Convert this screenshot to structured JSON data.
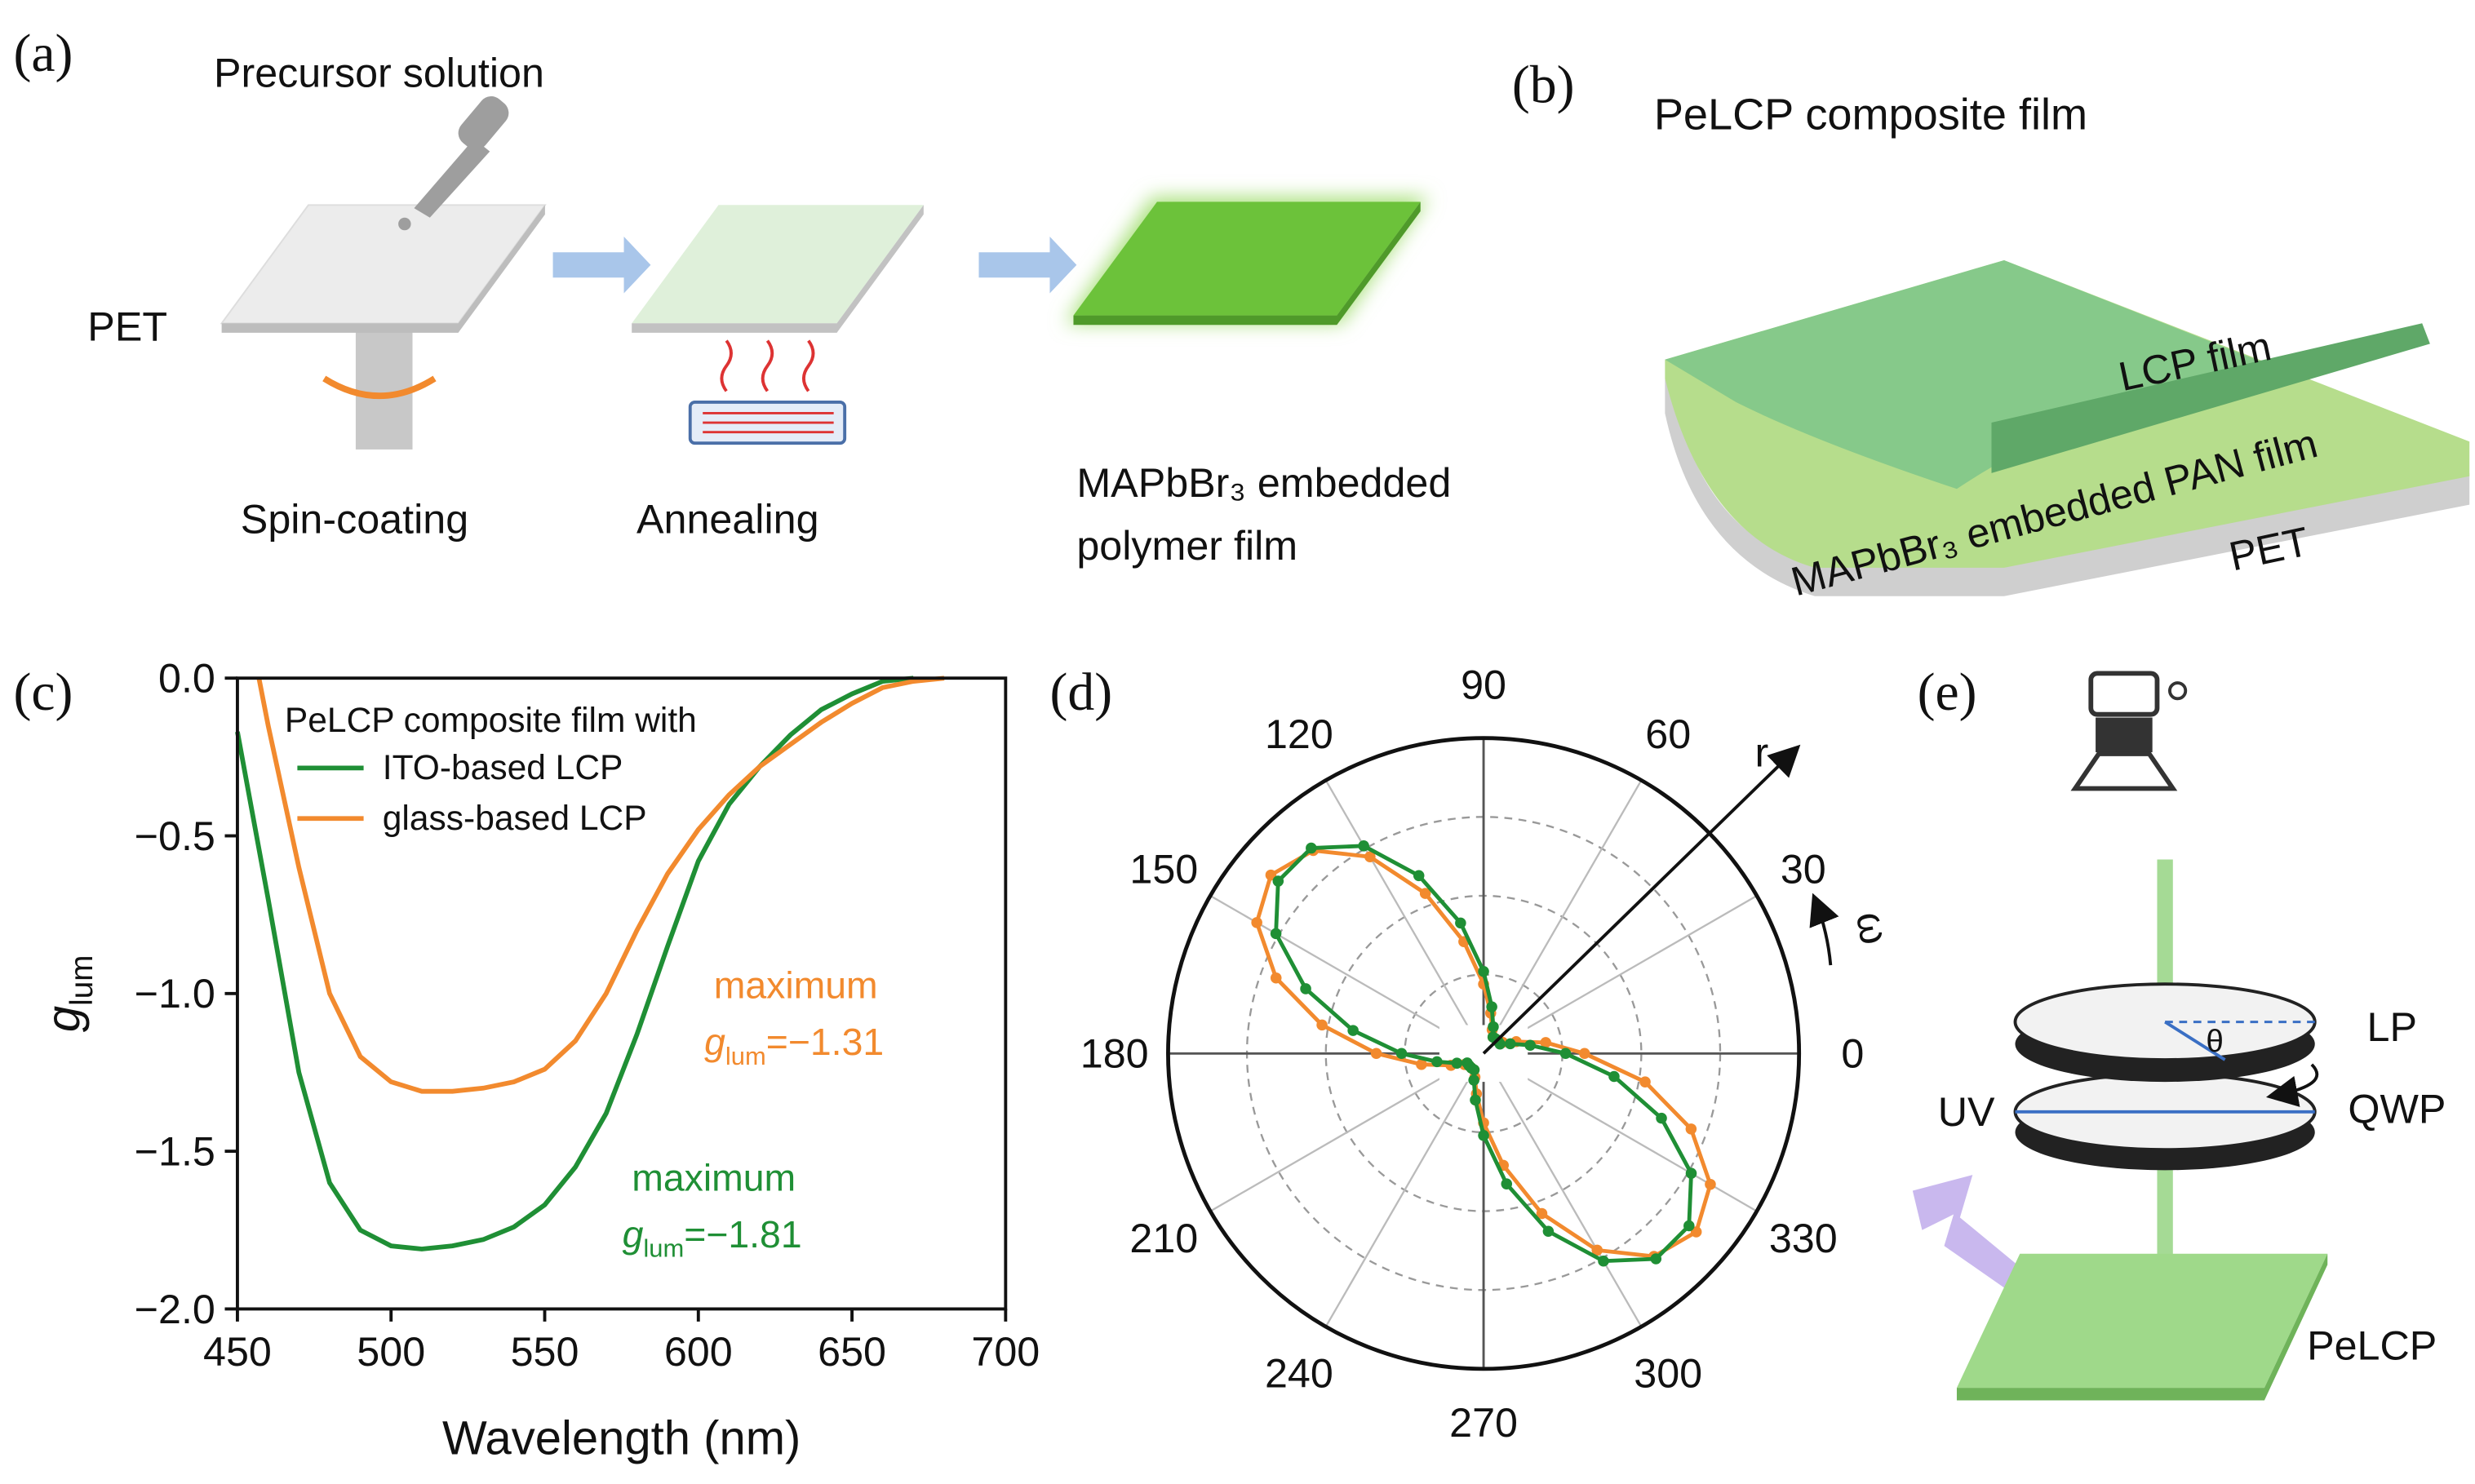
{
  "panel_a": {
    "label": "(a)",
    "precursor": "Precursor solution",
    "substrate": "PET",
    "steps": [
      "Spin-coating",
      "Annealing"
    ],
    "product": [
      "MAPbBr₃ embedded",
      "polymer film"
    ]
  },
  "panel_b": {
    "label": "(b)",
    "title": "PeLCP composite film",
    "layers": [
      "LCP film",
      "MAPbBr₃ embedded PAN film",
      "PET"
    ]
  },
  "panel_e": {
    "label": "(e)",
    "angle": "θ",
    "polarizer": "LP",
    "waveplate": "QWP",
    "source": "UV",
    "sample": "PeLCP"
  },
  "chart_data": [
    {
      "type": "line",
      "panel": "(c)",
      "x_label": "Wavelength (nm)",
      "y_label": {
        "symbol": "g",
        "subscript": "lum"
      },
      "xlim": [
        450,
        700
      ],
      "xticks": [
        450,
        500,
        550,
        600,
        650,
        700
      ],
      "ylim": [
        -2,
        0
      ],
      "yticks": [
        {
          "value": 0,
          "label": "0.0"
        },
        {
          "value": -0.5,
          "label": "−0.5"
        },
        {
          "value": -1,
          "label": "−1.0"
        },
        {
          "value": -1.5,
          "label": "−1.5"
        },
        {
          "value": -2,
          "label": "−2.0"
        }
      ],
      "legend": {
        "title": "PeLCP composite film with",
        "position": "upper left"
      },
      "series": [
        {
          "name": "ITO-based LCP",
          "color": "#1f8f35",
          "x": [
            450,
            460,
            470,
            480,
            490,
            500,
            510,
            520,
            530,
            540,
            550,
            560,
            570,
            580,
            590,
            600,
            610,
            620,
            630,
            640,
            650,
            660,
            670
          ],
          "values": [
            -0.17,
            -0.7,
            -1.25,
            -1.6,
            -1.75,
            -1.8,
            -1.81,
            -1.8,
            -1.78,
            -1.74,
            -1.67,
            -1.55,
            -1.38,
            -1.13,
            -0.85,
            -0.58,
            -0.4,
            -0.28,
            -0.18,
            -0.1,
            -0.05,
            -0.01,
            0
          ]
        },
        {
          "name": "glass-based LCP",
          "color": "#f28a2e",
          "x": [
            457,
            460,
            470,
            480,
            490,
            500,
            510,
            520,
            530,
            540,
            550,
            560,
            570,
            580,
            590,
            600,
            610,
            620,
            630,
            640,
            650,
            660,
            670,
            680
          ],
          "values": [
            0,
            -0.15,
            -0.6,
            -1.0,
            -1.2,
            -1.28,
            -1.31,
            -1.31,
            -1.3,
            -1.28,
            -1.24,
            -1.15,
            -1.0,
            -0.8,
            -0.62,
            -0.48,
            -0.37,
            -0.28,
            -0.21,
            -0.14,
            -0.08,
            -0.03,
            -0.01,
            0
          ]
        }
      ],
      "annotations": [
        {
          "text": "maximum",
          "symbol": "g",
          "subscript": "lum",
          "value_label": "=−1.31",
          "color": "#f28a2e"
        },
        {
          "text": "maximum",
          "symbol": "g",
          "subscript": "lum",
          "value_label": "=−1.81",
          "color": "#1f8f35"
        }
      ]
    },
    {
      "type": "polar",
      "panel": "(d)",
      "theta_ticks": [
        0,
        30,
        60,
        90,
        120,
        150,
        180,
        210,
        240,
        270,
        300,
        330
      ],
      "rlim": [
        0,
        1
      ],
      "rticks": [
        0.25,
        0.5,
        0.75
      ],
      "axis_labels": {
        "r": "r",
        "theta": "ω"
      },
      "series": [
        {
          "color": "#f28a2e",
          "theta": [
            0,
            10,
            20,
            30,
            40,
            50,
            60,
            70,
            80,
            90,
            100,
            110,
            120,
            130,
            140,
            150,
            160,
            170,
            180,
            190,
            200,
            210,
            220,
            230,
            240,
            250,
            260,
            270,
            280,
            290,
            300,
            310,
            320,
            330,
            340,
            350
          ],
          "values": [
            0.32,
            0.2,
            0.11,
            0.07,
            0.06,
            0.06,
            0.06,
            0.08,
            0.13,
            0.22,
            0.36,
            0.54,
            0.72,
            0.84,
            0.88,
            0.83,
            0.7,
            0.52,
            0.34,
            0.2,
            0.11,
            0.07,
            0.06,
            0.06,
            0.06,
            0.08,
            0.13,
            0.22,
            0.36,
            0.54,
            0.72,
            0.84,
            0.88,
            0.83,
            0.7,
            0.52
          ]
        },
        {
          "color": "#1f8f35",
          "theta": [
            0,
            10,
            20,
            30,
            40,
            50,
            60,
            70,
            80,
            90,
            100,
            110,
            120,
            130,
            140,
            150,
            160,
            170,
            180,
            190,
            200,
            210,
            220,
            230,
            240,
            250,
            260,
            270,
            280,
            290,
            300,
            310,
            320,
            330,
            340,
            350
          ],
          "values": [
            0.26,
            0.15,
            0.09,
            0.06,
            0.06,
            0.06,
            0.06,
            0.09,
            0.15,
            0.26,
            0.42,
            0.6,
            0.76,
            0.85,
            0.85,
            0.76,
            0.6,
            0.42,
            0.26,
            0.15,
            0.09,
            0.06,
            0.06,
            0.06,
            0.06,
            0.09,
            0.15,
            0.26,
            0.42,
            0.6,
            0.76,
            0.85,
            0.85,
            0.76,
            0.6,
            0.42
          ]
        }
      ]
    }
  ]
}
